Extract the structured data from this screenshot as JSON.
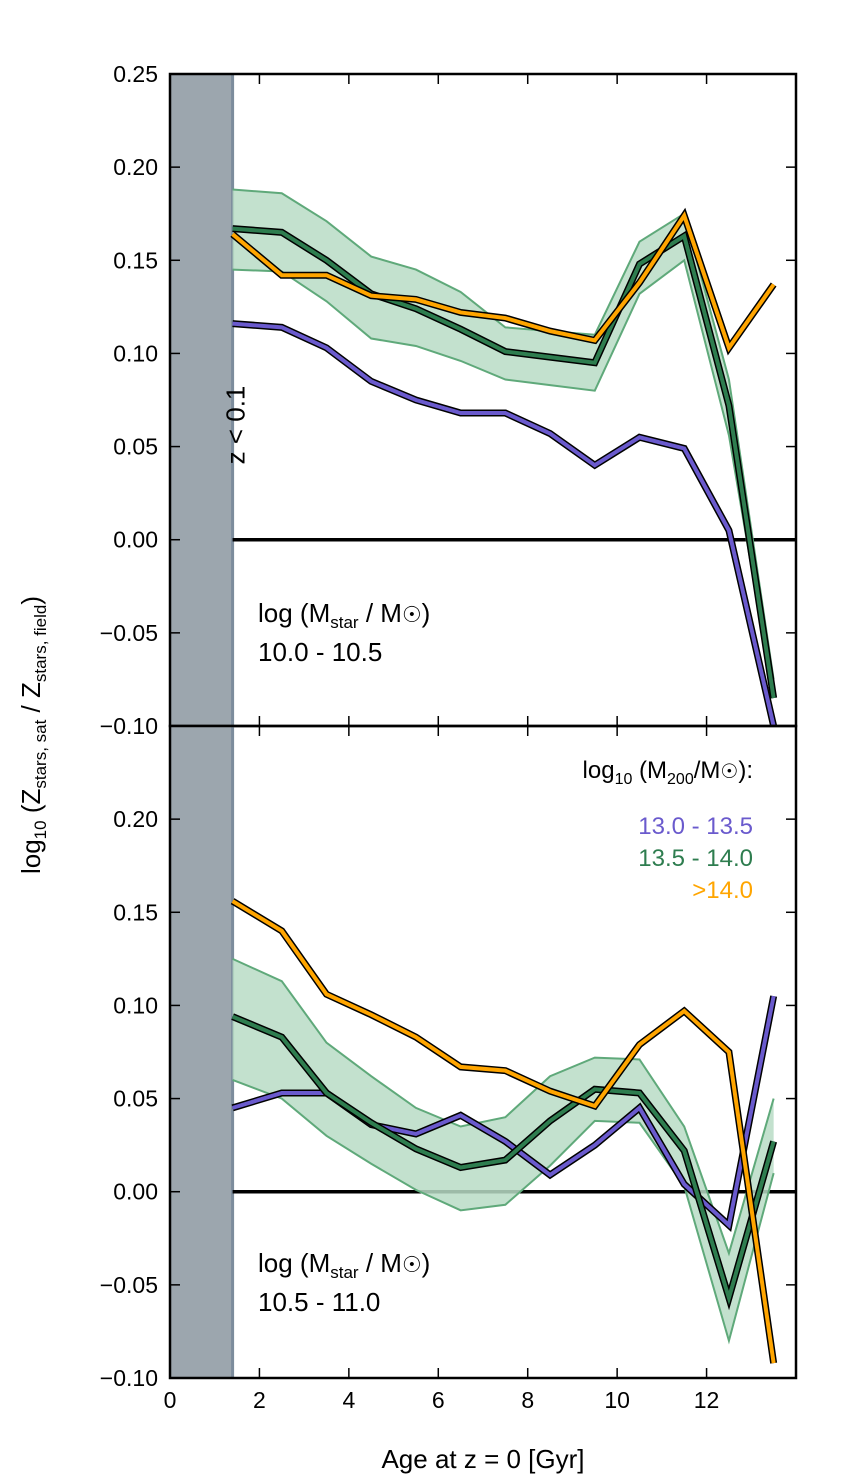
{
  "colors": {
    "series1": "#6a5acd",
    "series2": "#2e7d4f",
    "series2_band": "#b9dcc6",
    "series2_band_edge": "#5fa97a",
    "series3": "#ffa500",
    "shade": "#9ca6ae",
    "shade_edge": "#7c8c9c",
    "zero_line": "#000000"
  },
  "chart_data": [
    {
      "type": "line",
      "panel": "top",
      "annotation_lines": [
        "log (M",
        "star",
        " / M",
        "☉",
        ")"
      ],
      "annotation_range": "10.0 - 10.5",
      "shaded_region": {
        "x": [
          0,
          1.4
        ],
        "label": "z < 0.1"
      },
      "ylim": [
        -0.1,
        0.25
      ],
      "yticks": [
        "0.25",
        "0.20",
        "0.15",
        "0.10",
        "0.05",
        "0.00",
        "−0.05",
        "−0.10"
      ],
      "xlim": [
        0,
        14
      ],
      "x": [
        1.4,
        2.5,
        3.5,
        4.5,
        5.5,
        6.5,
        7.5,
        8.5,
        9.5,
        10.5,
        11.5,
        12.5,
        13.5
      ],
      "series": [
        {
          "name": "13.0 - 13.5",
          "values": [
            0.116,
            0.114,
            0.103,
            0.085,
            0.075,
            0.068,
            0.068,
            0.057,
            0.04,
            0.055,
            0.049,
            0.005,
            -0.1
          ]
        },
        {
          "name": "13.5 - 14.0",
          "values": [
            0.167,
            0.165,
            0.15,
            0.132,
            0.124,
            0.113,
            0.101,
            0.098,
            0.095,
            0.148,
            0.163,
            0.072,
            -0.085
          ],
          "band_upper": [
            0.188,
            0.186,
            0.171,
            0.152,
            0.145,
            0.133,
            0.114,
            0.112,
            0.11,
            0.16,
            0.175,
            0.086,
            -0.075
          ],
          "band_lower": [
            0.145,
            0.144,
            0.128,
            0.108,
            0.104,
            0.096,
            0.086,
            0.083,
            0.08,
            0.132,
            0.15,
            0.056,
            -0.085
          ]
        },
        {
          "name": ">14.0",
          "values": [
            0.164,
            0.142,
            0.142,
            0.131,
            0.129,
            0.122,
            0.119,
            0.112,
            0.107,
            0.138,
            0.174,
            0.103,
            0.137
          ]
        }
      ]
    },
    {
      "type": "line",
      "panel": "bottom",
      "annotation_range": "10.5 - 11.0",
      "shaded_region": {
        "x": [
          0,
          1.4
        ]
      },
      "ylim": [
        -0.1,
        0.25
      ],
      "yticks": [
        "0.20",
        "0.15",
        "0.10",
        "0.05",
        "0.00",
        "−0.05",
        "−0.10"
      ],
      "xlim": [
        0,
        14
      ],
      "xticks": [
        "0",
        "2",
        "4",
        "6",
        "8",
        "10",
        "12"
      ],
      "xlabel": "Age at z = 0 [Gyr]",
      "x": [
        1.4,
        2.5,
        3.5,
        4.5,
        5.5,
        6.5,
        7.5,
        8.5,
        9.5,
        10.5,
        11.5,
        12.5,
        13.5
      ],
      "series": [
        {
          "name": "13.0 - 13.5",
          "values": [
            0.045,
            0.053,
            0.053,
            0.036,
            0.031,
            0.041,
            0.027,
            0.009,
            0.025,
            0.045,
            0.004,
            -0.018,
            0.105
          ]
        },
        {
          "name": "13.5 - 14.0",
          "values": [
            0.094,
            0.083,
            0.053,
            0.037,
            0.023,
            0.013,
            0.017,
            0.038,
            0.055,
            0.053,
            0.022,
            -0.057,
            0.027
          ],
          "band_upper": [
            0.125,
            0.113,
            0.08,
            0.062,
            0.045,
            0.035,
            0.04,
            0.062,
            0.072,
            0.071,
            0.035,
            -0.033,
            0.05
          ],
          "band_lower": [
            0.06,
            0.05,
            0.03,
            0.015,
            0.001,
            -0.01,
            -0.007,
            0.014,
            0.038,
            0.037,
            0.003,
            -0.08,
            0.01
          ]
        },
        {
          "name": ">14.0",
          "values": [
            0.156,
            0.14,
            0.106,
            0.095,
            0.083,
            0.067,
            0.065,
            0.054,
            0.046,
            0.079,
            0.097,
            0.075,
            -0.092
          ]
        }
      ]
    }
  ],
  "legend": {
    "title": "log",
    "title_sub": "10",
    "title_rest": " (M",
    "title_sub2": "200",
    "title_rest2": "/M",
    "title_sym": "☉",
    "title_end": "):",
    "entries": [
      "13.0 - 13.5",
      "13.5 - 14.0",
      ">14.0"
    ]
  },
  "ylabel": {
    "p1": "log",
    "s1": "10",
    "p2": " (Z",
    "s2": "stars, sat",
    "p3": " / Z",
    "s3": "stars, field",
    "p4": ")"
  },
  "annotation": {
    "mstar_prefix": "log (M",
    "mstar_sub": "star",
    "mstar_mid": " / M",
    "mstar_sym": "☉",
    "mstar_end": ")"
  }
}
